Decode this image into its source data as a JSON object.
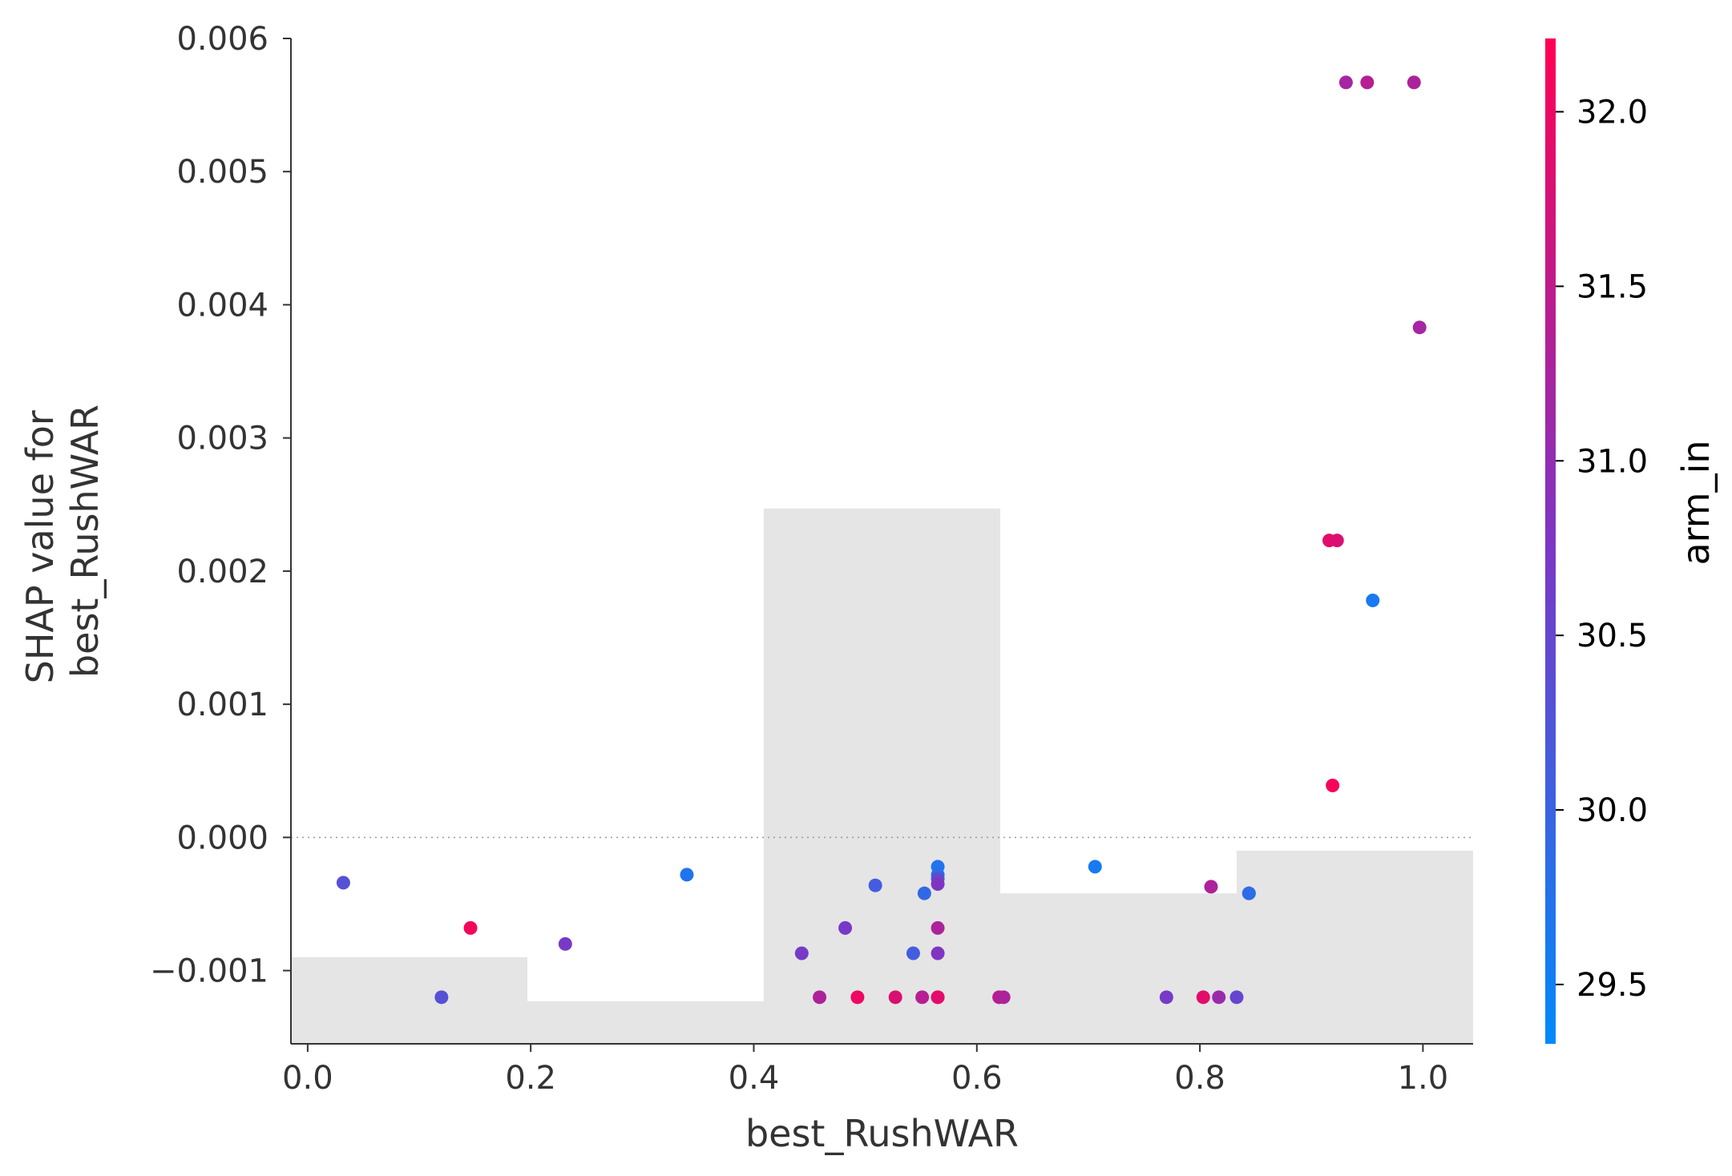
{
  "chart_data": {
    "type": "scatter",
    "title": "",
    "xlabel": "best_RushWAR",
    "ylabel_lines": [
      "SHAP value for",
      "best_RushWAR"
    ],
    "xlim": [
      -0.015,
      1.045
    ],
    "ylim": [
      -0.00155,
      0.006
    ],
    "xticks": [
      0.0,
      0.2,
      0.4,
      0.6,
      0.8,
      1.0
    ],
    "xtick_labels": [
      "0.0",
      "0.2",
      "0.4",
      "0.6",
      "0.8",
      "1.0"
    ],
    "yticks": [
      -0.001,
      0.0,
      0.001,
      0.002,
      0.003,
      0.004,
      0.005,
      0.006
    ],
    "ytick_labels": [
      "−0.001",
      "0.000",
      "0.001",
      "0.002",
      "0.003",
      "0.004",
      "0.005",
      "0.006"
    ],
    "zero_line": 0.0,
    "histogram": {
      "color": "#e5e5e5",
      "bins": [
        {
          "x0": -0.015,
          "x1": 0.197,
          "top": -0.0009
        },
        {
          "x0": 0.197,
          "x1": 0.409,
          "top": -0.00123
        },
        {
          "x0": 0.409,
          "x1": 0.621,
          "top": 0.00247
        },
        {
          "x0": 0.621,
          "x1": 0.833,
          "top": -0.00042
        },
        {
          "x0": 0.833,
          "x1": 1.045,
          "top": -0.0001
        }
      ]
    },
    "colorbar": {
      "label": "arm_in",
      "min": 29.33,
      "max": 32.21,
      "ticks": [
        29.5,
        30.0,
        30.5,
        31.0,
        31.5,
        32.0
      ],
      "tick_labels": [
        "29.5",
        "30.0",
        "30.5",
        "31.0",
        "31.5",
        "32.0"
      ],
      "colors": [
        "#008afb",
        "#7d36c4",
        "#ff0052"
      ]
    },
    "points": [
      {
        "x": 0.032,
        "y": -0.00034,
        "c": 30.3
      },
      {
        "x": 0.12,
        "y": -0.0012,
        "c": 30.3
      },
      {
        "x": 0.146,
        "y": -0.00068,
        "c": 32.1
      },
      {
        "x": 0.231,
        "y": -0.0008,
        "c": 30.7
      },
      {
        "x": 0.34,
        "y": -0.00028,
        "c": 29.7
      },
      {
        "x": 0.443,
        "y": -0.00087,
        "c": 30.7
      },
      {
        "x": 0.459,
        "y": -0.0012,
        "c": 31.3
      },
      {
        "x": 0.482,
        "y": -0.00068,
        "c": 30.7
      },
      {
        "x": 0.493,
        "y": -0.0012,
        "c": 32.0
      },
      {
        "x": 0.509,
        "y": -0.00036,
        "c": 30.1
      },
      {
        "x": 0.527,
        "y": -0.0012,
        "c": 31.8
      },
      {
        "x": 0.543,
        "y": -0.00087,
        "c": 30.1
      },
      {
        "x": 0.551,
        "y": -0.0012,
        "c": 31.4
      },
      {
        "x": 0.553,
        "y": -0.00042,
        "c": 29.9
      },
      {
        "x": 0.565,
        "y": -0.00022,
        "c": 29.7
      },
      {
        "x": 0.565,
        "y": -0.00028,
        "c": 29.8
      },
      {
        "x": 0.565,
        "y": -0.00031,
        "c": 30.4
      },
      {
        "x": 0.565,
        "y": -0.00035,
        "c": 30.8
      },
      {
        "x": 0.565,
        "y": -0.00068,
        "c": 31.3
      },
      {
        "x": 0.565,
        "y": -0.00087,
        "c": 30.8
      },
      {
        "x": 0.565,
        "y": -0.0012,
        "c": 31.6
      },
      {
        "x": 0.565,
        "y": -0.0012,
        "c": 31.9
      },
      {
        "x": 0.62,
        "y": -0.0012,
        "c": 31.4
      },
      {
        "x": 0.624,
        "y": -0.0012,
        "c": 31.3
      },
      {
        "x": 0.706,
        "y": -0.00022,
        "c": 29.6
      },
      {
        "x": 0.77,
        "y": -0.0012,
        "c": 30.7
      },
      {
        "x": 0.803,
        "y": -0.0012,
        "c": 31.9
      },
      {
        "x": 0.81,
        "y": -0.00037,
        "c": 31.3
      },
      {
        "x": 0.817,
        "y": -0.0012,
        "c": 31.1
      },
      {
        "x": 0.833,
        "y": -0.0012,
        "c": 30.5
      },
      {
        "x": 0.844,
        "y": -0.00042,
        "c": 29.9
      },
      {
        "x": 0.844,
        "y": -0.00042,
        "c": 29.85
      },
      {
        "x": 0.916,
        "y": 0.00223,
        "c": 31.9
      },
      {
        "x": 0.923,
        "y": 0.00223,
        "c": 31.8
      },
      {
        "x": 0.919,
        "y": 0.00039,
        "c": 32.1
      },
      {
        "x": 0.931,
        "y": 0.00567,
        "c": 31.2
      },
      {
        "x": 0.95,
        "y": 0.00567,
        "c": 31.4
      },
      {
        "x": 0.955,
        "y": 0.00178,
        "c": 29.6
      },
      {
        "x": 0.992,
        "y": 0.00567,
        "c": 31.3
      },
      {
        "x": 0.997,
        "y": 0.00383,
        "c": 31.2
      }
    ]
  }
}
